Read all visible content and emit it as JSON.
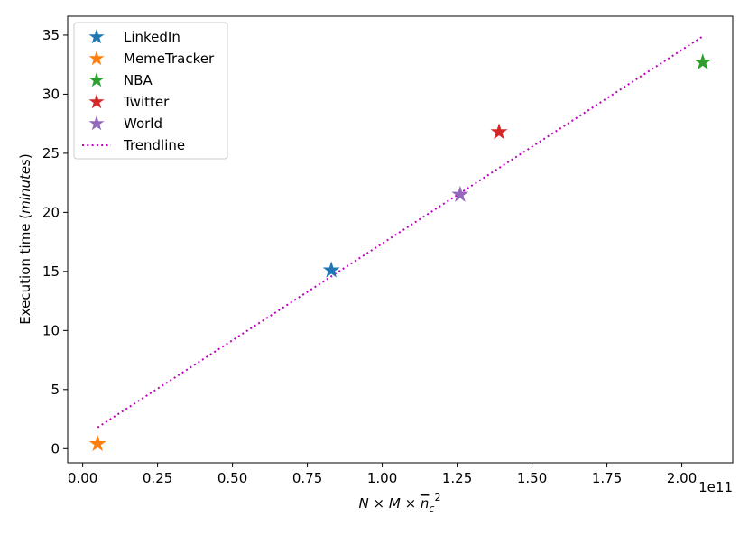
{
  "chart_data": {
    "type": "scatter",
    "title": "",
    "xlabel": "N × M × n̄_c²",
    "xlabel_parts": {
      "n": "N",
      "times1": " × ",
      "m": "M",
      "times2": " × ",
      "nc": "n",
      "nc_sub": "c",
      "nc_sup": "2"
    },
    "ylabel_prefix": "Execution time (",
    "ylabel_italic": "minutes",
    "ylabel_suffix": ")",
    "x_offset_text": "1e11",
    "xlim": [
      -0.05,
      2.17
    ],
    "ylim": [
      -1.2,
      36.6
    ],
    "x_ticks": [
      0.0,
      0.25,
      0.5,
      0.75,
      1.0,
      1.25,
      1.5,
      1.75,
      2.0
    ],
    "x_tick_labels": [
      "0.00",
      "0.25",
      "0.50",
      "0.75",
      "1.00",
      "1.25",
      "1.50",
      "1.75",
      "2.00"
    ],
    "y_ticks": [
      0,
      5,
      10,
      15,
      20,
      25,
      30,
      35
    ],
    "y_tick_labels": [
      "0",
      "5",
      "10",
      "15",
      "20",
      "25",
      "30",
      "35"
    ],
    "grid": false,
    "legend_position": "top-left",
    "series": [
      {
        "name": "LinkedIn",
        "color": "#1f77b4",
        "marker": "star",
        "x": [
          0.83
        ],
        "y": [
          15.1
        ]
      },
      {
        "name": "MemeTracker",
        "color": "#ff7f0e",
        "marker": "star",
        "x": [
          0.05
        ],
        "y": [
          0.4
        ]
      },
      {
        "name": "NBA",
        "color": "#2ca02c",
        "marker": "star",
        "x": [
          2.07
        ],
        "y": [
          32.7
        ]
      },
      {
        "name": "Twitter",
        "color": "#d62728",
        "marker": "star",
        "x": [
          1.39
        ],
        "y": [
          26.8
        ]
      },
      {
        "name": "World",
        "color": "#9467bd",
        "marker": "star",
        "x": [
          1.26
        ],
        "y": [
          21.5
        ]
      }
    ],
    "trendline": {
      "name": "Trendline",
      "color": "#bf00bf",
      "style": "dotted",
      "x": [
        0.05,
        2.07
      ],
      "y": [
        1.8,
        34.9
      ]
    }
  }
}
